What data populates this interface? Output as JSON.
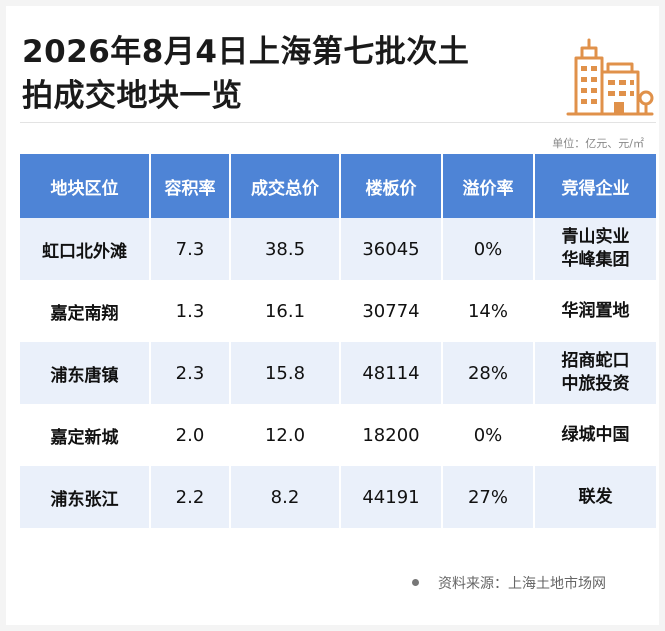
{
  "title": {
    "line1": "2026年8月4日上海第七批次土",
    "line2": "拍成交地块一览"
  },
  "logo_icon": "buildings-icon",
  "unit": "单位：亿元、元/㎡",
  "accent_color": "#4e84d6",
  "table": {
    "headers": [
      "地块区位",
      "容积率",
      "成交总价",
      "楼板价",
      "溢价率",
      "竞得企业"
    ],
    "rows": [
      {
        "location": "虹口北外滩",
        "far": "7.3",
        "total": "38.5",
        "floor_price": "36045",
        "premium": "0%",
        "winner": [
          "青山实业",
          "华峰集团"
        ]
      },
      {
        "location": "嘉定南翔",
        "far": "1.3",
        "total": "16.1",
        "floor_price": "30774",
        "premium": "14%",
        "winner": [
          "华润置地"
        ]
      },
      {
        "location": "浦东唐镇",
        "far": "2.3",
        "total": "15.8",
        "floor_price": "48114",
        "premium": "28%",
        "winner": [
          "招商蛇口",
          "中旅投资"
        ]
      },
      {
        "location": "嘉定新城",
        "far": "2.0",
        "total": "12.0",
        "floor_price": "18200",
        "premium": "0%",
        "winner": [
          "绿城中国"
        ]
      },
      {
        "location": "浦东张江",
        "far": "2.2",
        "total": "8.2",
        "floor_price": "44191",
        "premium": "27%",
        "winner": [
          "联发"
        ]
      }
    ]
  },
  "source": "资料来源：上海土地市场网"
}
